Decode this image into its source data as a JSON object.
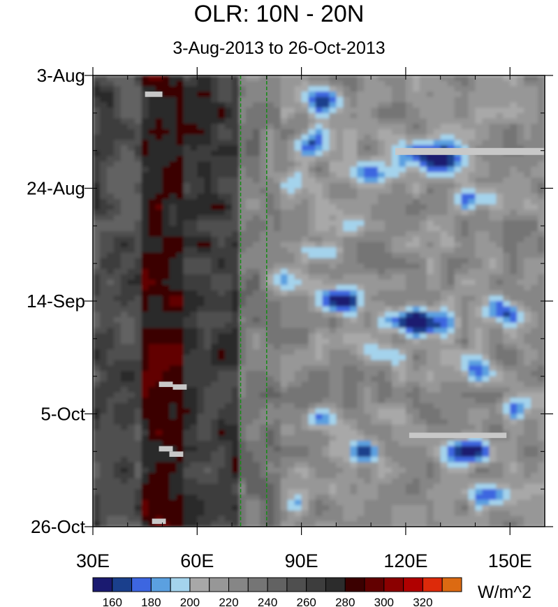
{
  "chart_data": {
    "type": "heatmap",
    "title": "OLR: 10N - 20N",
    "subtitle": "3-Aug-2013 to 26-Oct-2013",
    "x_axis": {
      "range": [
        30,
        160
      ],
      "tick_labels": [
        {
          "value": 30,
          "label": "30E"
        },
        {
          "value": 60,
          "label": "60E"
        },
        {
          "value": 90,
          "label": "90E"
        },
        {
          "value": 120,
          "label": "120E"
        },
        {
          "value": 150,
          "label": "150E"
        }
      ],
      "minor_step": 10
    },
    "y_axis": {
      "range_days": [
        0,
        84
      ],
      "direction": "downward",
      "tick_labels": [
        {
          "day": 0,
          "label": "3-Aug"
        },
        {
          "day": 21,
          "label": "24-Aug"
        },
        {
          "day": 42,
          "label": "14-Sep"
        },
        {
          "day": 63,
          "label": "5-Oct"
        },
        {
          "day": 84,
          "label": "26-Oct"
        }
      ],
      "minor_step_days": 7
    },
    "reference_lines": [
      {
        "lon": 72.5,
        "style": "dashed",
        "color": "#1a8c1a"
      },
      {
        "lon": 80,
        "style": "dashed",
        "color": "#1a8c1a"
      }
    ],
    "colorbar": {
      "units": "W/m^2",
      "levels": [
        150,
        160,
        170,
        180,
        190,
        200,
        210,
        220,
        230,
        240,
        250,
        260,
        270,
        280,
        290,
        300,
        310,
        320,
        330
      ],
      "labels": [
        "160",
        "180",
        "200",
        "220",
        "240",
        "260",
        "280",
        "300",
        "320"
      ],
      "colors": [
        "#1a1a70",
        "#1a3f8c",
        "#3d66e0",
        "#5ba0e0",
        "#a4d3ec",
        "#a8a8a8",
        "#979797",
        "#868686",
        "#757575",
        "#626262",
        "#4f4f4f",
        "#3d3d3d",
        "#2c2c2c",
        "#3b0000",
        "#620000",
        "#8b0000",
        "#b00000",
        "#dd2a0a",
        "#dc6a12"
      ]
    },
    "missing_data_color": "#c8c8c8",
    "regions": [
      {
        "lon_range": [
          30,
          48
        ],
        "typical_olr": "250-270"
      },
      {
        "lon_range": [
          45,
          57
        ],
        "typical_olr": "280-300",
        "note": "red maxima band"
      },
      {
        "lon_range": [
          57,
          72
        ],
        "typical_olr": "260-280"
      },
      {
        "lon_range": [
          72,
          85
        ],
        "typical_olr": "200-230"
      },
      {
        "lon_range": [
          85,
          160
        ],
        "typical_olr": "160-230",
        "note": "convective blue patches"
      }
    ]
  }
}
